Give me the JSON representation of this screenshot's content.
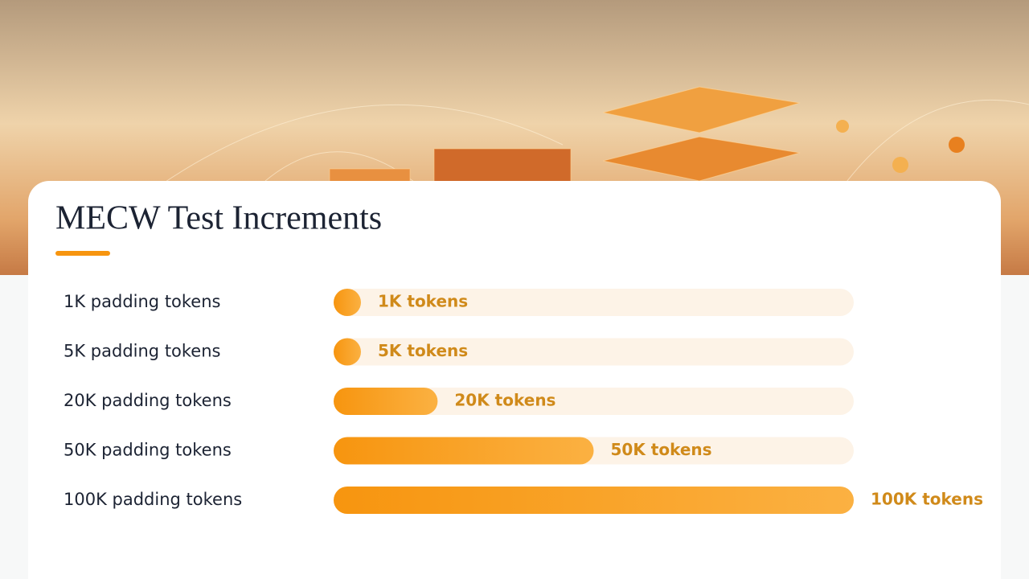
{
  "chart_data": {
    "type": "bar",
    "orientation": "horizontal",
    "title": "MECW Test Increments",
    "categories": [
      "1K padding tokens",
      "5K padding tokens",
      "20K padding tokens",
      "50K padding tokens",
      "100K padding tokens"
    ],
    "values": [
      1000,
      5000,
      20000,
      50000,
      100000
    ],
    "value_labels": [
      "1K tokens",
      "5K tokens",
      "20K tokens",
      "50K tokens",
      "100K tokens"
    ],
    "color": "#f7950f",
    "xlim": [
      0,
      100000
    ]
  }
}
